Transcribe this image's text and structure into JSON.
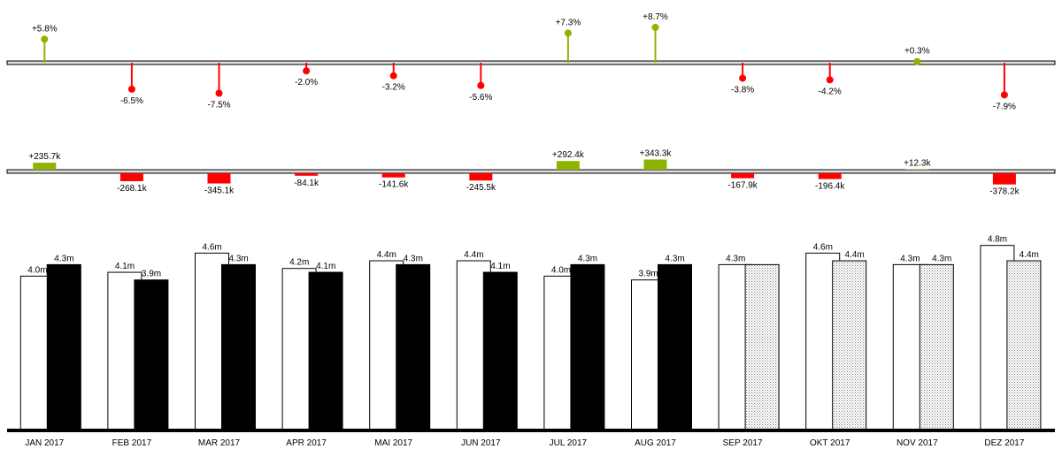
{
  "chart_data": {
    "type": "bar",
    "categories": [
      "JAN 2017",
      "FEB 2017",
      "MAR 2017",
      "APR 2017",
      "MAI 2017",
      "JUN 2017",
      "JUL 2017",
      "AUG 2017",
      "SEP 2017",
      "OKT 2017",
      "NOV 2017",
      "DEZ 2017"
    ],
    "series": [
      {
        "values": [
          4.0,
          4.1,
          4.6,
          4.2,
          4.4,
          4.4,
          4.0,
          3.9,
          4.3,
          4.6,
          4.3,
          4.8
        ],
        "labels": [
          "4.0m",
          "4.1m",
          "4.6m",
          "4.2m",
          "4.4m",
          "4.4m",
          "4.0m",
          "3.9m",
          "4.3m",
          "4.6m",
          "4.3m",
          "4.8m"
        ]
      },
      {
        "values": [
          4.3,
          3.9,
          4.3,
          4.1,
          4.3,
          4.1,
          4.3,
          4.3,
          4.3,
          4.4,
          4.3,
          4.4
        ],
        "labels": [
          "4.3m",
          "3.9m",
          "4.3m",
          "4.1m",
          "4.3m",
          "4.1m",
          "4.3m",
          "4.3m",
          null,
          "4.4m",
          "4.3m",
          "4.4m"
        ],
        "kind": [
          "actual",
          "actual",
          "actual",
          "actual",
          "actual",
          "actual",
          "actual",
          "actual",
          "forecast",
          "forecast",
          "forecast",
          "forecast"
        ]
      }
    ],
    "abs_variance": {
      "values": [
        235.7,
        -268.1,
        -345.1,
        -84.1,
        -141.6,
        -245.5,
        292.4,
        343.3,
        -167.9,
        -196.4,
        12.3,
        -378.2
      ],
      "labels": [
        "+235.7k",
        "-268.1k",
        "-345.1k",
        "-84.1k",
        "-141.6k",
        "-245.5k",
        "+292.4k",
        "+343.3k",
        "-167.9k",
        "-196.4k",
        "+12.3k",
        "-378.2k"
      ]
    },
    "rel_variance": {
      "values": [
        5.8,
        -6.5,
        -7.5,
        -2.0,
        -3.2,
        -5.6,
        7.3,
        8.7,
        -3.8,
        -4.2,
        0.3,
        -7.9
      ],
      "labels": [
        "+5.8%",
        "-6.5%",
        "-7.5%",
        "-2.0%",
        "-3.2%",
        "-5.6%",
        "+7.3%",
        "+8.7%",
        "-3.8%",
        "-4.2%",
        "+0.3%",
        "-7.9%"
      ]
    },
    "colors": {
      "positive": "#8db400",
      "negative": "#ff0000",
      "actual": "#000000",
      "previous": "#ffffff",
      "axis": "#000000"
    },
    "ylim": [
      0,
      5
    ],
    "grid": false
  }
}
